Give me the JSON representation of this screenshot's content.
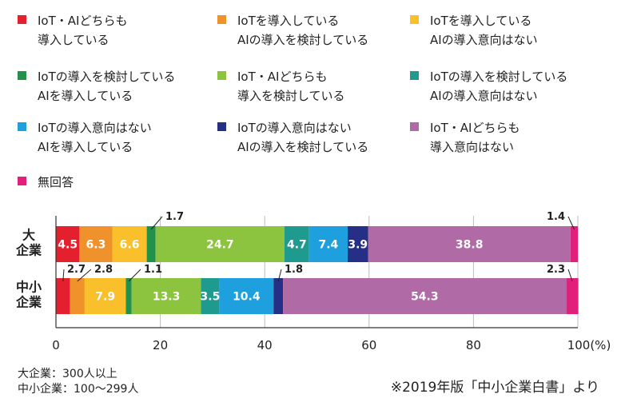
{
  "chart_data": {
    "type": "bar",
    "stacked": true,
    "orientation": "horizontal",
    "categories": [
      "大\n企業",
      "中小\n企業"
    ],
    "series": [
      {
        "name": "IoT・AIどちらも\n導入している",
        "color": "#e5202e",
        "values": [
          4.5,
          2.7
        ]
      },
      {
        "name": "IoTを導入している\nAIの導入を検討している",
        "color": "#f0922b",
        "values": [
          6.3,
          2.8
        ]
      },
      {
        "name": "IoTを導入している\nAIの導入意向はない",
        "color": "#f9c02b",
        "values": [
          6.6,
          7.9
        ]
      },
      {
        "name": "IoTの導入を検討している\nAIを導入している",
        "color": "#22914a",
        "values": [
          1.7,
          1.1
        ]
      },
      {
        "name": "IoT・AIどちらも\n導入を検討している",
        "color": "#8cc43f",
        "values": [
          24.7,
          13.3
        ]
      },
      {
        "name": "IoTの導入を検討している\nAIの導入意向はない",
        "color": "#1e9a8e",
        "values": [
          4.7,
          3.5
        ]
      },
      {
        "name": "IoTの導入意向はない\nAIを導入している",
        "color": "#1ea0df",
        "values": [
          7.4,
          10.4
        ]
      },
      {
        "name": "IoTの導入意向はない\nAIの導入を検討している",
        "color": "#252f86",
        "values": [
          3.9,
          1.8
        ]
      },
      {
        "name": "IoT・AIどちらも\n導入意向はない",
        "color": "#b06aa6",
        "values": [
          38.8,
          54.3
        ]
      },
      {
        "name": "無回答",
        "color": "#e0207b",
        "values": [
          1.4,
          2.3
        ]
      }
    ],
    "labels": [
      [
        "4.5",
        "6.3",
        "6.6",
        "1.7",
        "24.7",
        "4.7",
        "7.4",
        "3.9",
        "38.8",
        "1.4"
      ],
      [
        "2.7",
        "2.8",
        "7.9",
        "1.1",
        "13.3",
        "3.5",
        "10.4",
        "1.8",
        "54.3",
        "2.3"
      ]
    ],
    "xlim": [
      0,
      100
    ],
    "xticks": [
      0,
      20,
      40,
      60,
      80,
      100
    ],
    "xtick_labels": [
      "0",
      "20",
      "40",
      "60",
      "80",
      "100(%)"
    ],
    "grid": true,
    "legend_position": "top"
  },
  "notes": {
    "large": "大企業：300人以上",
    "small": "中小企業：100〜299人"
  },
  "source": "※2019年版「中小企業白書」より"
}
